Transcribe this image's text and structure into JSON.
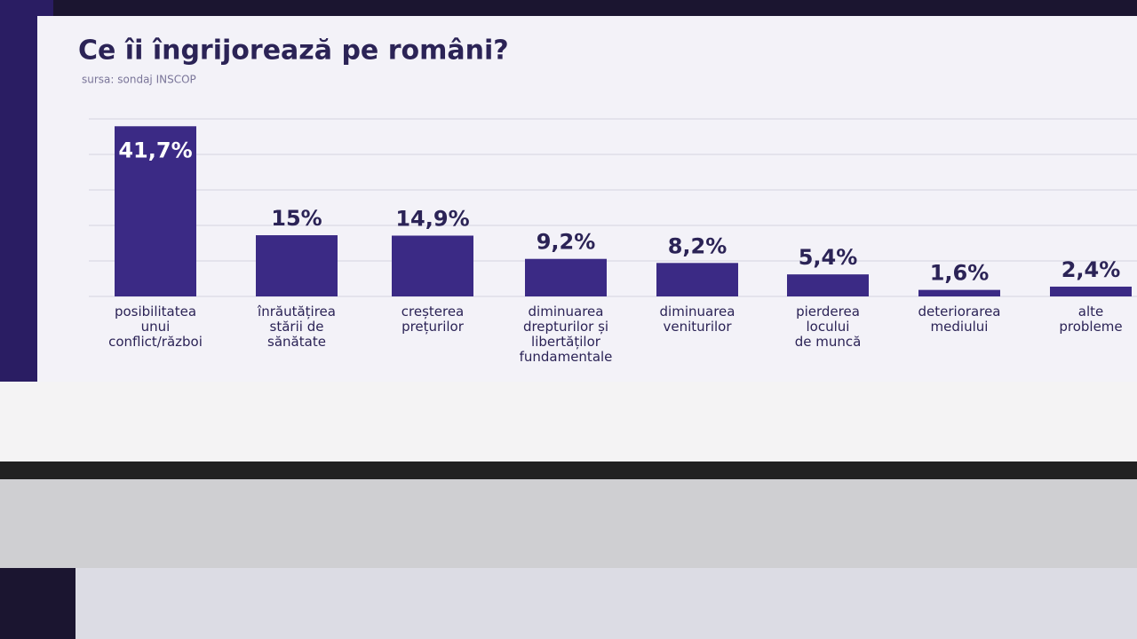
{
  "chart_data": {
    "type": "bar",
    "title": "Ce îi îngrijorează pe români?",
    "subtitle": "sursa: sondaj INSCOP",
    "categories": [
      "posibilitatea\nunui\nconflict/război",
      "înrăutățirea\nstării de\nsănătate",
      "creșterea\nprețurilor",
      "diminuarea\ndrepturilor și\nlibertăților\nfundamentale",
      "diminuarea\nveniturilor",
      "pierderea\nlocului\nde muncă",
      "deteriorarea\nmediului",
      "alte\nprobleme"
    ],
    "values": [
      41.7,
      15,
      14.9,
      9.2,
      8.2,
      5.4,
      1.6,
      2.4
    ],
    "value_labels": [
      "41,7%",
      "15%",
      "14,9%",
      "9,2%",
      "8,2%",
      "5,4%",
      "1,6%",
      "2,4%"
    ],
    "color": "#3b2a85",
    "ylim": [
      0,
      43.5
    ],
    "yticks": [
      0,
      8.7,
      17.4,
      26.1,
      34.8,
      43.5
    ],
    "grid": true
  }
}
